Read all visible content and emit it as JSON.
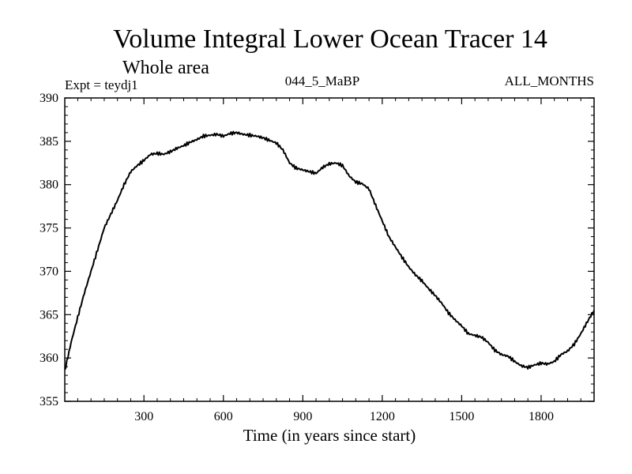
{
  "chart_data": {
    "type": "line",
    "title": "Volume Integral Lower Ocean Tracer 14",
    "subtitle": "Whole area",
    "experiment_label": "Expt = teydj1",
    "run_label": "044_5_MaBP",
    "months_label": "ALL_MONTHS",
    "xlabel": "Time (in years since start)",
    "ylabel": "",
    "xlim": [
      1,
      2000
    ],
    "ylim": [
      355,
      390
    ],
    "xticks": [
      300,
      600,
      900,
      1200,
      1500,
      1800
    ],
    "yticks": [
      355,
      360,
      365,
      370,
      375,
      380,
      385,
      390
    ],
    "grid": false,
    "series": [
      {
        "name": "Tracer 14",
        "color": "#000000",
        "x": [
          1,
          25,
          50,
          75,
          100,
          125,
          150,
          175,
          200,
          225,
          250,
          275,
          300,
          325,
          350,
          375,
          400,
          425,
          450,
          475,
          500,
          525,
          550,
          575,
          600,
          625,
          650,
          675,
          700,
          725,
          750,
          775,
          800,
          825,
          850,
          875,
          900,
          925,
          950,
          975,
          1000,
          1025,
          1050,
          1075,
          1100,
          1125,
          1150,
          1175,
          1200,
          1225,
          1250,
          1275,
          1300,
          1325,
          1350,
          1375,
          1400,
          1425,
          1450,
          1475,
          1500,
          1525,
          1550,
          1575,
          1600,
          1625,
          1650,
          1675,
          1700,
          1725,
          1750,
          1775,
          1800,
          1825,
          1850,
          1875,
          1900,
          1925,
          1950,
          1975,
          2000
        ],
        "values": [
          358.5,
          361.8,
          364.7,
          367.5,
          370.0,
          372.5,
          375.0,
          376.6,
          378.2,
          380.0,
          381.5,
          382.2,
          382.8,
          383.5,
          383.6,
          383.5,
          383.8,
          384.2,
          384.5,
          384.9,
          385.2,
          385.6,
          385.7,
          385.8,
          385.6,
          385.9,
          386.0,
          385.8,
          385.7,
          385.6,
          385.4,
          385.1,
          384.8,
          384.0,
          382.5,
          381.9,
          381.7,
          381.5,
          381.3,
          382.0,
          382.4,
          382.5,
          382.2,
          381.0,
          380.3,
          380.1,
          379.5,
          377.6,
          375.8,
          374.0,
          372.8,
          371.6,
          370.5,
          369.6,
          368.9,
          368.0,
          367.2,
          366.3,
          365.2,
          364.4,
          363.7,
          362.8,
          362.6,
          362.4,
          361.8,
          360.9,
          360.4,
          360.2,
          359.6,
          359.1,
          358.9,
          359.2,
          359.4,
          359.3,
          359.6,
          360.4,
          360.8,
          361.6,
          362.8,
          364.2,
          365.5
        ]
      }
    ]
  }
}
